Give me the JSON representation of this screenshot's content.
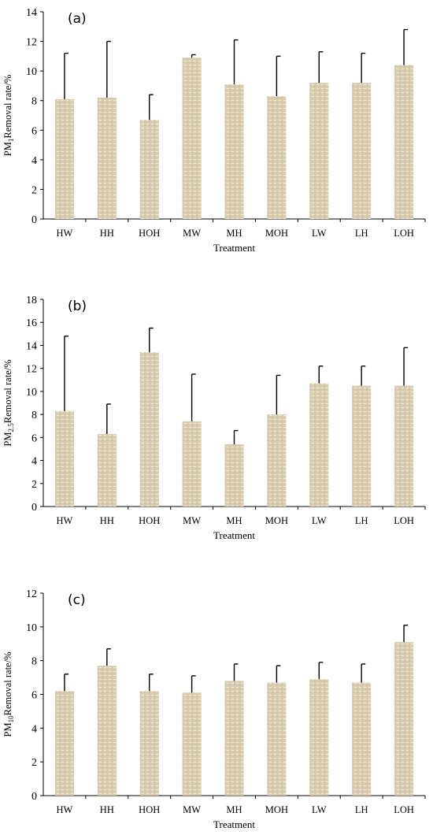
{
  "colors": {
    "bar": "#d8ccb0",
    "bar_texture": "#f1ece0",
    "axis": "#000000"
  },
  "chart_data": [
    {
      "type": "bar",
      "panel_label": "(a)",
      "xlabel": "Treatment",
      "ylabel_prefix": "PM",
      "ylabel_sub": "1",
      "ylabel_suffix": "Removal rate/%",
      "ylim": [
        0,
        14
      ],
      "yticks": [
        "0",
        "2",
        "4",
        "6",
        "8",
        "10",
        "12",
        "14"
      ],
      "categories": [
        "HW",
        "HH",
        "HOH",
        "MW",
        "MH",
        "MOH",
        "LW",
        "LH",
        "LOH"
      ],
      "values": [
        8.1,
        8.2,
        6.7,
        10.9,
        9.1,
        8.3,
        9.2,
        9.2,
        10.4
      ],
      "error_upper": [
        11.2,
        12.0,
        8.4,
        11.1,
        12.1,
        11.0,
        11.3,
        11.2,
        12.8
      ]
    },
    {
      "type": "bar",
      "panel_label": "(b)",
      "xlabel": "Treatment",
      "ylabel_prefix": "PM",
      "ylabel_sub": "2.5",
      "ylabel_suffix": "Removal rate/%",
      "ylim": [
        0,
        18
      ],
      "yticks": [
        "0",
        "2",
        "4",
        "6",
        "8",
        "10",
        "12",
        "14",
        "16",
        "18"
      ],
      "categories": [
        "HW",
        "HH",
        "HOH",
        "MW",
        "MH",
        "MOH",
        "LW",
        "LH",
        "LOH"
      ],
      "values": [
        8.3,
        6.3,
        13.4,
        7.4,
        5.4,
        8.0,
        10.7,
        10.5,
        10.5
      ],
      "error_upper": [
        14.8,
        8.9,
        15.5,
        11.5,
        6.6,
        11.4,
        12.2,
        12.2,
        13.8
      ]
    },
    {
      "type": "bar",
      "panel_label": "(c)",
      "xlabel": "Treatment",
      "ylabel_prefix": "PM",
      "ylabel_sub": "10",
      "ylabel_suffix": "Removal rate/%",
      "ylim": [
        0,
        12
      ],
      "yticks": [
        "0",
        "2",
        "4",
        "6",
        "8",
        "10",
        "12"
      ],
      "categories": [
        "HW",
        "HH",
        "HOH",
        "MW",
        "MH",
        "MOH",
        "LW",
        "LH",
        "LOH"
      ],
      "values": [
        6.2,
        7.7,
        6.2,
        6.1,
        6.8,
        6.7,
        6.9,
        6.7,
        9.1
      ],
      "error_upper": [
        7.2,
        8.7,
        7.2,
        7.1,
        7.8,
        7.7,
        7.9,
        7.8,
        10.1
      ]
    }
  ]
}
